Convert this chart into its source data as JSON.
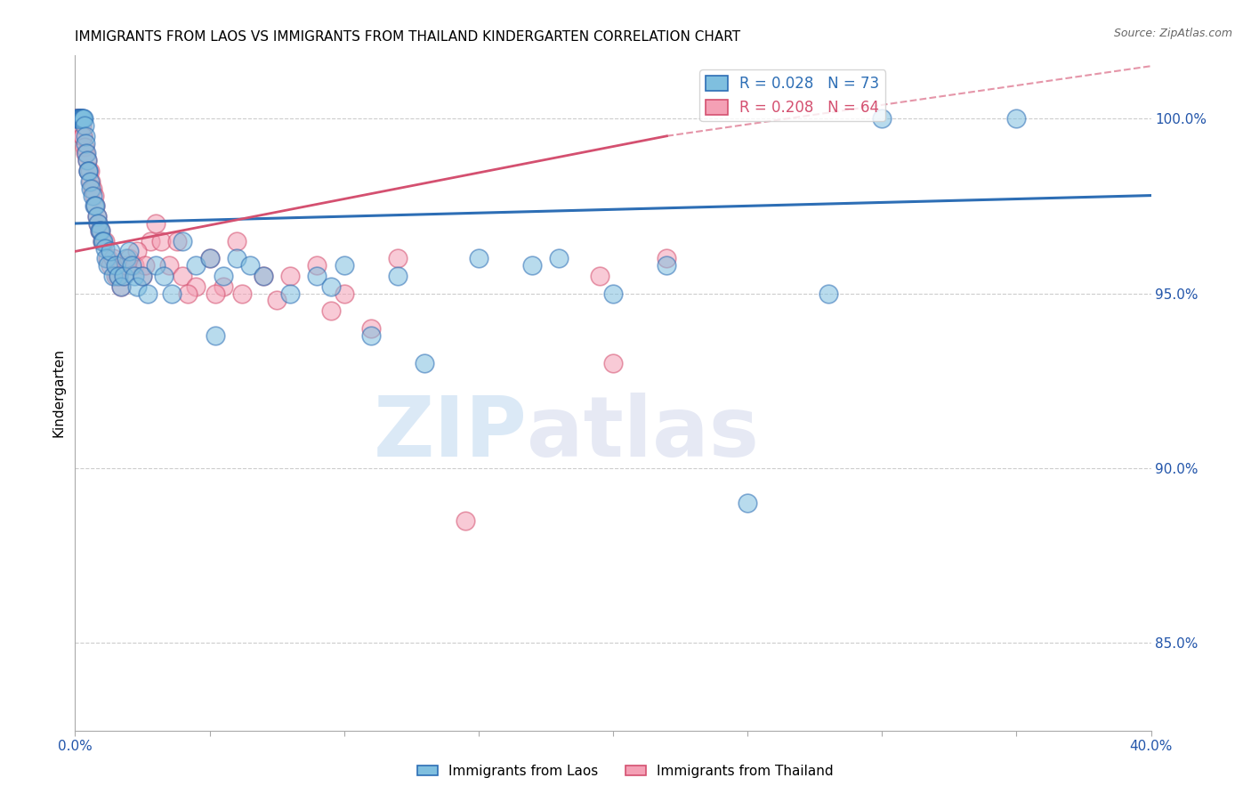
{
  "title": "IMMIGRANTS FROM LAOS VS IMMIGRANTS FROM THAILAND KINDERGARTEN CORRELATION CHART",
  "source": "Source: ZipAtlas.com",
  "ylabel": "Kindergarten",
  "y_ticks": [
    85.0,
    90.0,
    95.0,
    100.0
  ],
  "y_tick_labels": [
    "85.0%",
    "90.0%",
    "95.0%",
    "100.0%"
  ],
  "x_min": 0.0,
  "x_max": 40.0,
  "y_min": 82.5,
  "y_max": 101.8,
  "R_laos": 0.028,
  "N_laos": 73,
  "R_thailand": 0.208,
  "N_thailand": 64,
  "color_laos": "#7fbfdf",
  "color_thailand": "#f4a0b5",
  "line_color_laos": "#2d6eb5",
  "line_color_thailand": "#d45070",
  "watermark_zip": "ZIP",
  "watermark_atlas": "atlas",
  "laos_x": [
    0.05,
    0.08,
    0.1,
    0.12,
    0.15,
    0.18,
    0.2,
    0.22,
    0.25,
    0.28,
    0.3,
    0.32,
    0.35,
    0.38,
    0.4,
    0.42,
    0.45,
    0.48,
    0.5,
    0.55,
    0.6,
    0.65,
    0.7,
    0.75,
    0.8,
    0.85,
    0.9,
    0.95,
    1.0,
    1.05,
    1.1,
    1.15,
    1.2,
    1.3,
    1.4,
    1.5,
    1.6,
    1.7,
    1.8,
    1.9,
    2.0,
    2.1,
    2.2,
    2.3,
    2.5,
    2.7,
    3.0,
    3.3,
    3.6,
    4.0,
    4.5,
    5.0,
    5.5,
    6.0,
    6.5,
    7.0,
    8.0,
    9.0,
    10.0,
    11.0,
    12.0,
    13.0,
    15.0,
    17.0,
    18.0,
    20.0,
    22.0,
    25.0,
    28.0,
    30.0,
    35.0,
    5.2,
    9.5
  ],
  "laos_y": [
    100.0,
    100.0,
    100.0,
    100.0,
    100.0,
    100.0,
    100.0,
    100.0,
    100.0,
    100.0,
    100.0,
    100.0,
    99.8,
    99.5,
    99.3,
    99.0,
    98.8,
    98.5,
    98.5,
    98.2,
    98.0,
    97.8,
    97.5,
    97.5,
    97.2,
    97.0,
    96.8,
    96.8,
    96.5,
    96.5,
    96.3,
    96.0,
    95.8,
    96.2,
    95.5,
    95.8,
    95.5,
    95.2,
    95.5,
    96.0,
    96.2,
    95.8,
    95.5,
    95.2,
    95.5,
    95.0,
    95.8,
    95.5,
    95.0,
    96.5,
    95.8,
    96.0,
    95.5,
    96.0,
    95.8,
    95.5,
    95.0,
    95.5,
    95.8,
    93.8,
    95.5,
    93.0,
    96.0,
    95.8,
    96.0,
    95.0,
    95.8,
    89.0,
    95.0,
    100.0,
    100.0,
    93.8,
    95.2
  ],
  "thailand_x": [
    0.05,
    0.08,
    0.1,
    0.12,
    0.15,
    0.18,
    0.2,
    0.22,
    0.25,
    0.28,
    0.3,
    0.35,
    0.4,
    0.45,
    0.5,
    0.55,
    0.6,
    0.65,
    0.7,
    0.75,
    0.8,
    0.85,
    0.9,
    0.95,
    1.0,
    1.1,
    1.2,
    1.3,
    1.4,
    1.5,
    1.6,
    1.7,
    1.8,
    1.9,
    2.0,
    2.2,
    2.5,
    2.8,
    3.0,
    3.5,
    4.0,
    4.5,
    5.0,
    5.5,
    6.0,
    7.0,
    8.0,
    9.0,
    10.0,
    12.0,
    2.3,
    2.6,
    3.2,
    3.8,
    4.2,
    5.2,
    6.2,
    7.5,
    9.5,
    11.0,
    14.5,
    19.5,
    20.0,
    22.0
  ],
  "thailand_y": [
    100.0,
    100.0,
    100.0,
    100.0,
    100.0,
    100.0,
    100.0,
    100.0,
    99.8,
    99.5,
    99.5,
    99.2,
    99.0,
    98.8,
    98.5,
    98.5,
    98.2,
    98.0,
    97.8,
    97.5,
    97.2,
    97.0,
    96.8,
    96.8,
    96.5,
    96.5,
    96.0,
    95.8,
    96.0,
    95.5,
    95.5,
    95.2,
    95.5,
    95.8,
    96.0,
    95.8,
    95.5,
    96.5,
    97.0,
    95.8,
    95.5,
    95.2,
    96.0,
    95.2,
    96.5,
    95.5,
    95.5,
    95.8,
    95.0,
    96.0,
    96.2,
    95.8,
    96.5,
    96.5,
    95.0,
    95.0,
    95.0,
    94.8,
    94.5,
    94.0,
    88.5,
    95.5,
    93.0,
    96.0
  ],
  "line_laos_x0": 0.0,
  "line_laos_y0": 97.0,
  "line_laos_x1": 40.0,
  "line_laos_y1": 97.8,
  "line_thailand_x0": 0.0,
  "line_thailand_y0": 96.2,
  "line_thailand_x1": 22.0,
  "line_thailand_y1": 99.5,
  "line_thailand_dash_x0": 22.0,
  "line_thailand_dash_y0": 99.5,
  "line_thailand_dash_x1": 40.0,
  "line_thailand_dash_y1": 101.5
}
